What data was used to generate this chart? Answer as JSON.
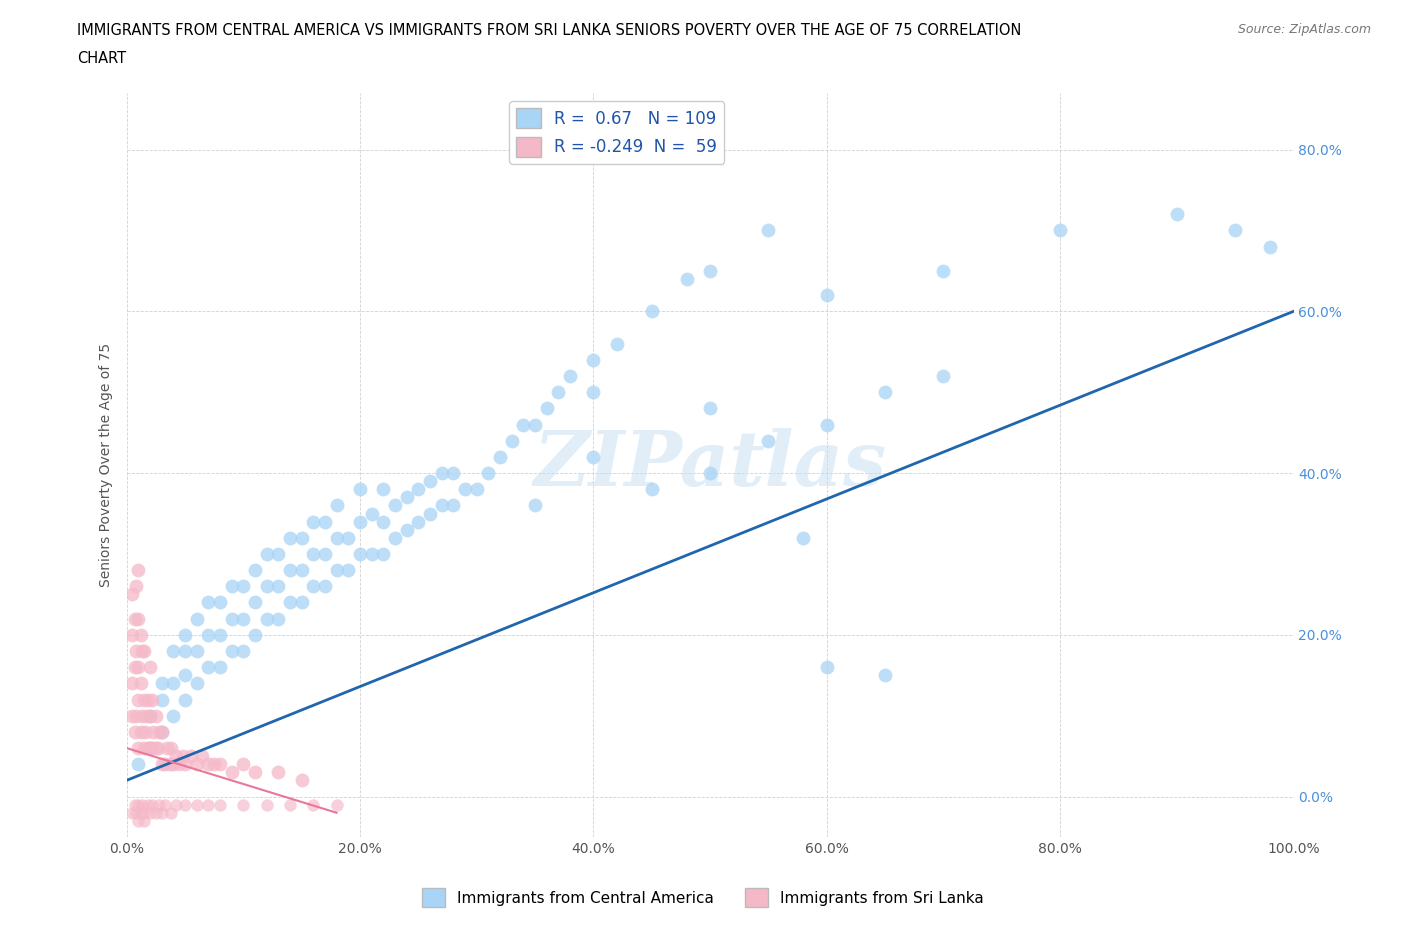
{
  "title_line1": "IMMIGRANTS FROM CENTRAL AMERICA VS IMMIGRANTS FROM SRI LANKA SENIORS POVERTY OVER THE AGE OF 75 CORRELATION",
  "title_line2": "CHART",
  "source": "Source: ZipAtlas.com",
  "ylabel": "Seniors Poverty Over the Age of 75",
  "r_blue": 0.67,
  "n_blue": 109,
  "r_pink": -0.249,
  "n_pink": 59,
  "xlim": [
    0,
    1.0
  ],
  "ylim": [
    -0.05,
    0.87
  ],
  "xticks": [
    0.0,
    0.2,
    0.4,
    0.6,
    0.8,
    1.0
  ],
  "yticks": [
    0.0,
    0.2,
    0.4,
    0.6,
    0.8
  ],
  "xticklabels": [
    "0.0%",
    "20.0%",
    "40.0%",
    "60.0%",
    "80.0%",
    "100.0%"
  ],
  "yticklabels": [
    "0.0%",
    "20.0%",
    "40.0%",
    "60.0%",
    "80.0%"
  ],
  "blue_color": "#a8d4f5",
  "pink_color": "#f5b8c8",
  "blue_line_color": "#2166ac",
  "pink_line_color": "#e8789a",
  "legend_label_blue": "Immigrants from Central America",
  "legend_label_pink": "Immigrants from Sri Lanka",
  "watermark": "ZIPatlas",
  "blue_line_x": [
    0.0,
    1.0
  ],
  "blue_line_y": [
    0.02,
    0.6
  ],
  "pink_line_x": [
    0.0,
    0.18
  ],
  "pink_line_y": [
    0.06,
    -0.02
  ],
  "blue_scatter_x": [
    0.01,
    0.02,
    0.02,
    0.03,
    0.03,
    0.03,
    0.04,
    0.04,
    0.04,
    0.05,
    0.05,
    0.05,
    0.05,
    0.06,
    0.06,
    0.06,
    0.07,
    0.07,
    0.07,
    0.08,
    0.08,
    0.08,
    0.09,
    0.09,
    0.09,
    0.1,
    0.1,
    0.1,
    0.11,
    0.11,
    0.11,
    0.12,
    0.12,
    0.12,
    0.13,
    0.13,
    0.13,
    0.14,
    0.14,
    0.14,
    0.15,
    0.15,
    0.15,
    0.16,
    0.16,
    0.16,
    0.17,
    0.17,
    0.17,
    0.18,
    0.18,
    0.18,
    0.19,
    0.19,
    0.2,
    0.2,
    0.2,
    0.21,
    0.21,
    0.22,
    0.22,
    0.22,
    0.23,
    0.23,
    0.24,
    0.24,
    0.25,
    0.25,
    0.26,
    0.26,
    0.27,
    0.27,
    0.28,
    0.28,
    0.29,
    0.3,
    0.31,
    0.32,
    0.33,
    0.34,
    0.35,
    0.36,
    0.37,
    0.38,
    0.4,
    0.42,
    0.45,
    0.48,
    0.5,
    0.55,
    0.58,
    0.6,
    0.65,
    0.35,
    0.4,
    0.45,
    0.5,
    0.55,
    0.6,
    0.65,
    0.7,
    0.8,
    0.9,
    0.4,
    0.5,
    0.6,
    0.7,
    0.95,
    0.98
  ],
  "blue_scatter_y": [
    0.04,
    0.06,
    0.1,
    0.08,
    0.12,
    0.14,
    0.1,
    0.14,
    0.18,
    0.12,
    0.15,
    0.18,
    0.2,
    0.14,
    0.18,
    0.22,
    0.16,
    0.2,
    0.24,
    0.16,
    0.2,
    0.24,
    0.18,
    0.22,
    0.26,
    0.18,
    0.22,
    0.26,
    0.2,
    0.24,
    0.28,
    0.22,
    0.26,
    0.3,
    0.22,
    0.26,
    0.3,
    0.24,
    0.28,
    0.32,
    0.24,
    0.28,
    0.32,
    0.26,
    0.3,
    0.34,
    0.26,
    0.3,
    0.34,
    0.28,
    0.32,
    0.36,
    0.28,
    0.32,
    0.3,
    0.34,
    0.38,
    0.3,
    0.35,
    0.3,
    0.34,
    0.38,
    0.32,
    0.36,
    0.33,
    0.37,
    0.34,
    0.38,
    0.35,
    0.39,
    0.36,
    0.4,
    0.36,
    0.4,
    0.38,
    0.38,
    0.4,
    0.42,
    0.44,
    0.46,
    0.46,
    0.48,
    0.5,
    0.52,
    0.54,
    0.56,
    0.6,
    0.64,
    0.65,
    0.7,
    0.32,
    0.16,
    0.15,
    0.36,
    0.42,
    0.38,
    0.4,
    0.44,
    0.46,
    0.5,
    0.52,
    0.7,
    0.72,
    0.5,
    0.48,
    0.62,
    0.65,
    0.7,
    0.68
  ],
  "pink_scatter_x": [
    0.005,
    0.005,
    0.005,
    0.005,
    0.007,
    0.007,
    0.007,
    0.008,
    0.008,
    0.008,
    0.01,
    0.01,
    0.01,
    0.01,
    0.01,
    0.012,
    0.012,
    0.012,
    0.013,
    0.013,
    0.015,
    0.015,
    0.015,
    0.016,
    0.017,
    0.018,
    0.018,
    0.02,
    0.02,
    0.02,
    0.022,
    0.022,
    0.023,
    0.025,
    0.025,
    0.027,
    0.028,
    0.03,
    0.03,
    0.033,
    0.035,
    0.037,
    0.038,
    0.04,
    0.042,
    0.045,
    0.048,
    0.05,
    0.055,
    0.06,
    0.065,
    0.07,
    0.075,
    0.08,
    0.09,
    0.1,
    0.11,
    0.13,
    0.15
  ],
  "pink_scatter_y": [
    0.1,
    0.14,
    0.2,
    0.25,
    0.08,
    0.16,
    0.22,
    0.1,
    0.18,
    0.26,
    0.06,
    0.12,
    0.16,
    0.22,
    0.28,
    0.08,
    0.14,
    0.2,
    0.1,
    0.18,
    0.06,
    0.12,
    0.18,
    0.08,
    0.1,
    0.06,
    0.12,
    0.06,
    0.1,
    0.16,
    0.06,
    0.12,
    0.08,
    0.06,
    0.1,
    0.06,
    0.08,
    0.04,
    0.08,
    0.04,
    0.06,
    0.04,
    0.06,
    0.04,
    0.05,
    0.04,
    0.05,
    0.04,
    0.05,
    0.04,
    0.05,
    0.04,
    0.04,
    0.04,
    0.03,
    0.04,
    0.03,
    0.03,
    0.02
  ],
  "pink_below_x": [
    0.005,
    0.007,
    0.008,
    0.01,
    0.01,
    0.012,
    0.013,
    0.015,
    0.015,
    0.018,
    0.02,
    0.022,
    0.025,
    0.028,
    0.03,
    0.033,
    0.038,
    0.042,
    0.05,
    0.06,
    0.07,
    0.08,
    0.1,
    0.12,
    0.14,
    0.16,
    0.18
  ],
  "pink_below_y": [
    -0.02,
    -0.01,
    -0.02,
    -0.01,
    -0.03,
    -0.02,
    -0.01,
    -0.02,
    -0.03,
    -0.01,
    -0.02,
    -0.01,
    -0.02,
    -0.01,
    -0.02,
    -0.01,
    -0.02,
    -0.01,
    -0.01,
    -0.01,
    -0.01,
    -0.01,
    -0.01,
    -0.01,
    -0.01,
    -0.01,
    -0.01
  ]
}
